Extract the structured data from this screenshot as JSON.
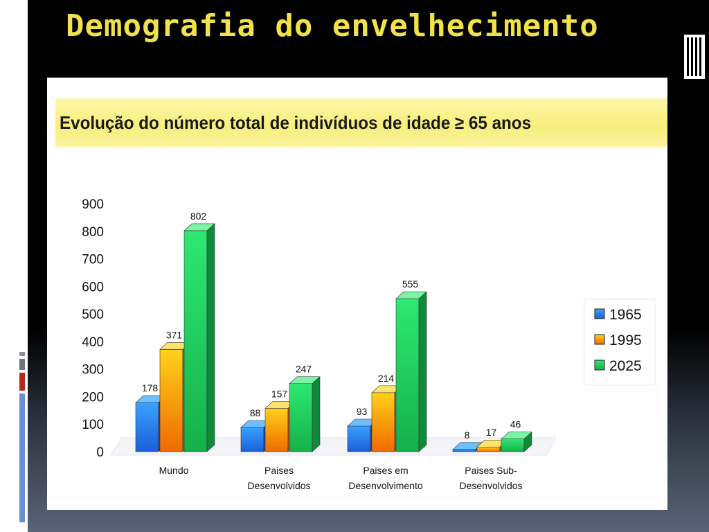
{
  "slide": {
    "title": "Demografia do envelhecimento"
  },
  "colors": {
    "title": "#f2e24a",
    "series_1965": "#1f6fe0",
    "series_1995": "#f6b800",
    "series_2025": "#1fd25a",
    "banner": "#f6ee7c"
  },
  "icons": [
    "window-lines-icon",
    "side-accent-bars-icon"
  ],
  "chart_data": {
    "type": "bar",
    "title": "Evolução do número total de indivíduos de idade ≥ 65 anos",
    "categories": [
      [
        "Mundo"
      ],
      [
        "Paises",
        "Desenvolvidos"
      ],
      [
        "Paises em",
        "Desenvolvimento"
      ],
      [
        "Paises Sub-",
        "Desenvolvidos"
      ]
    ],
    "series": [
      {
        "name": "1965",
        "values": [
          178,
          88,
          93,
          8
        ]
      },
      {
        "name": "1995",
        "values": [
          371,
          157,
          214,
          17
        ]
      },
      {
        "name": "2025",
        "values": [
          802,
          247,
          555,
          46
        ]
      }
    ],
    "ylim": [
      0,
      900
    ],
    "yticks": [
      0,
      100,
      200,
      300,
      400,
      500,
      600,
      700,
      800,
      900
    ],
    "legend_position": "right",
    "three_d": true,
    "grid": false
  }
}
